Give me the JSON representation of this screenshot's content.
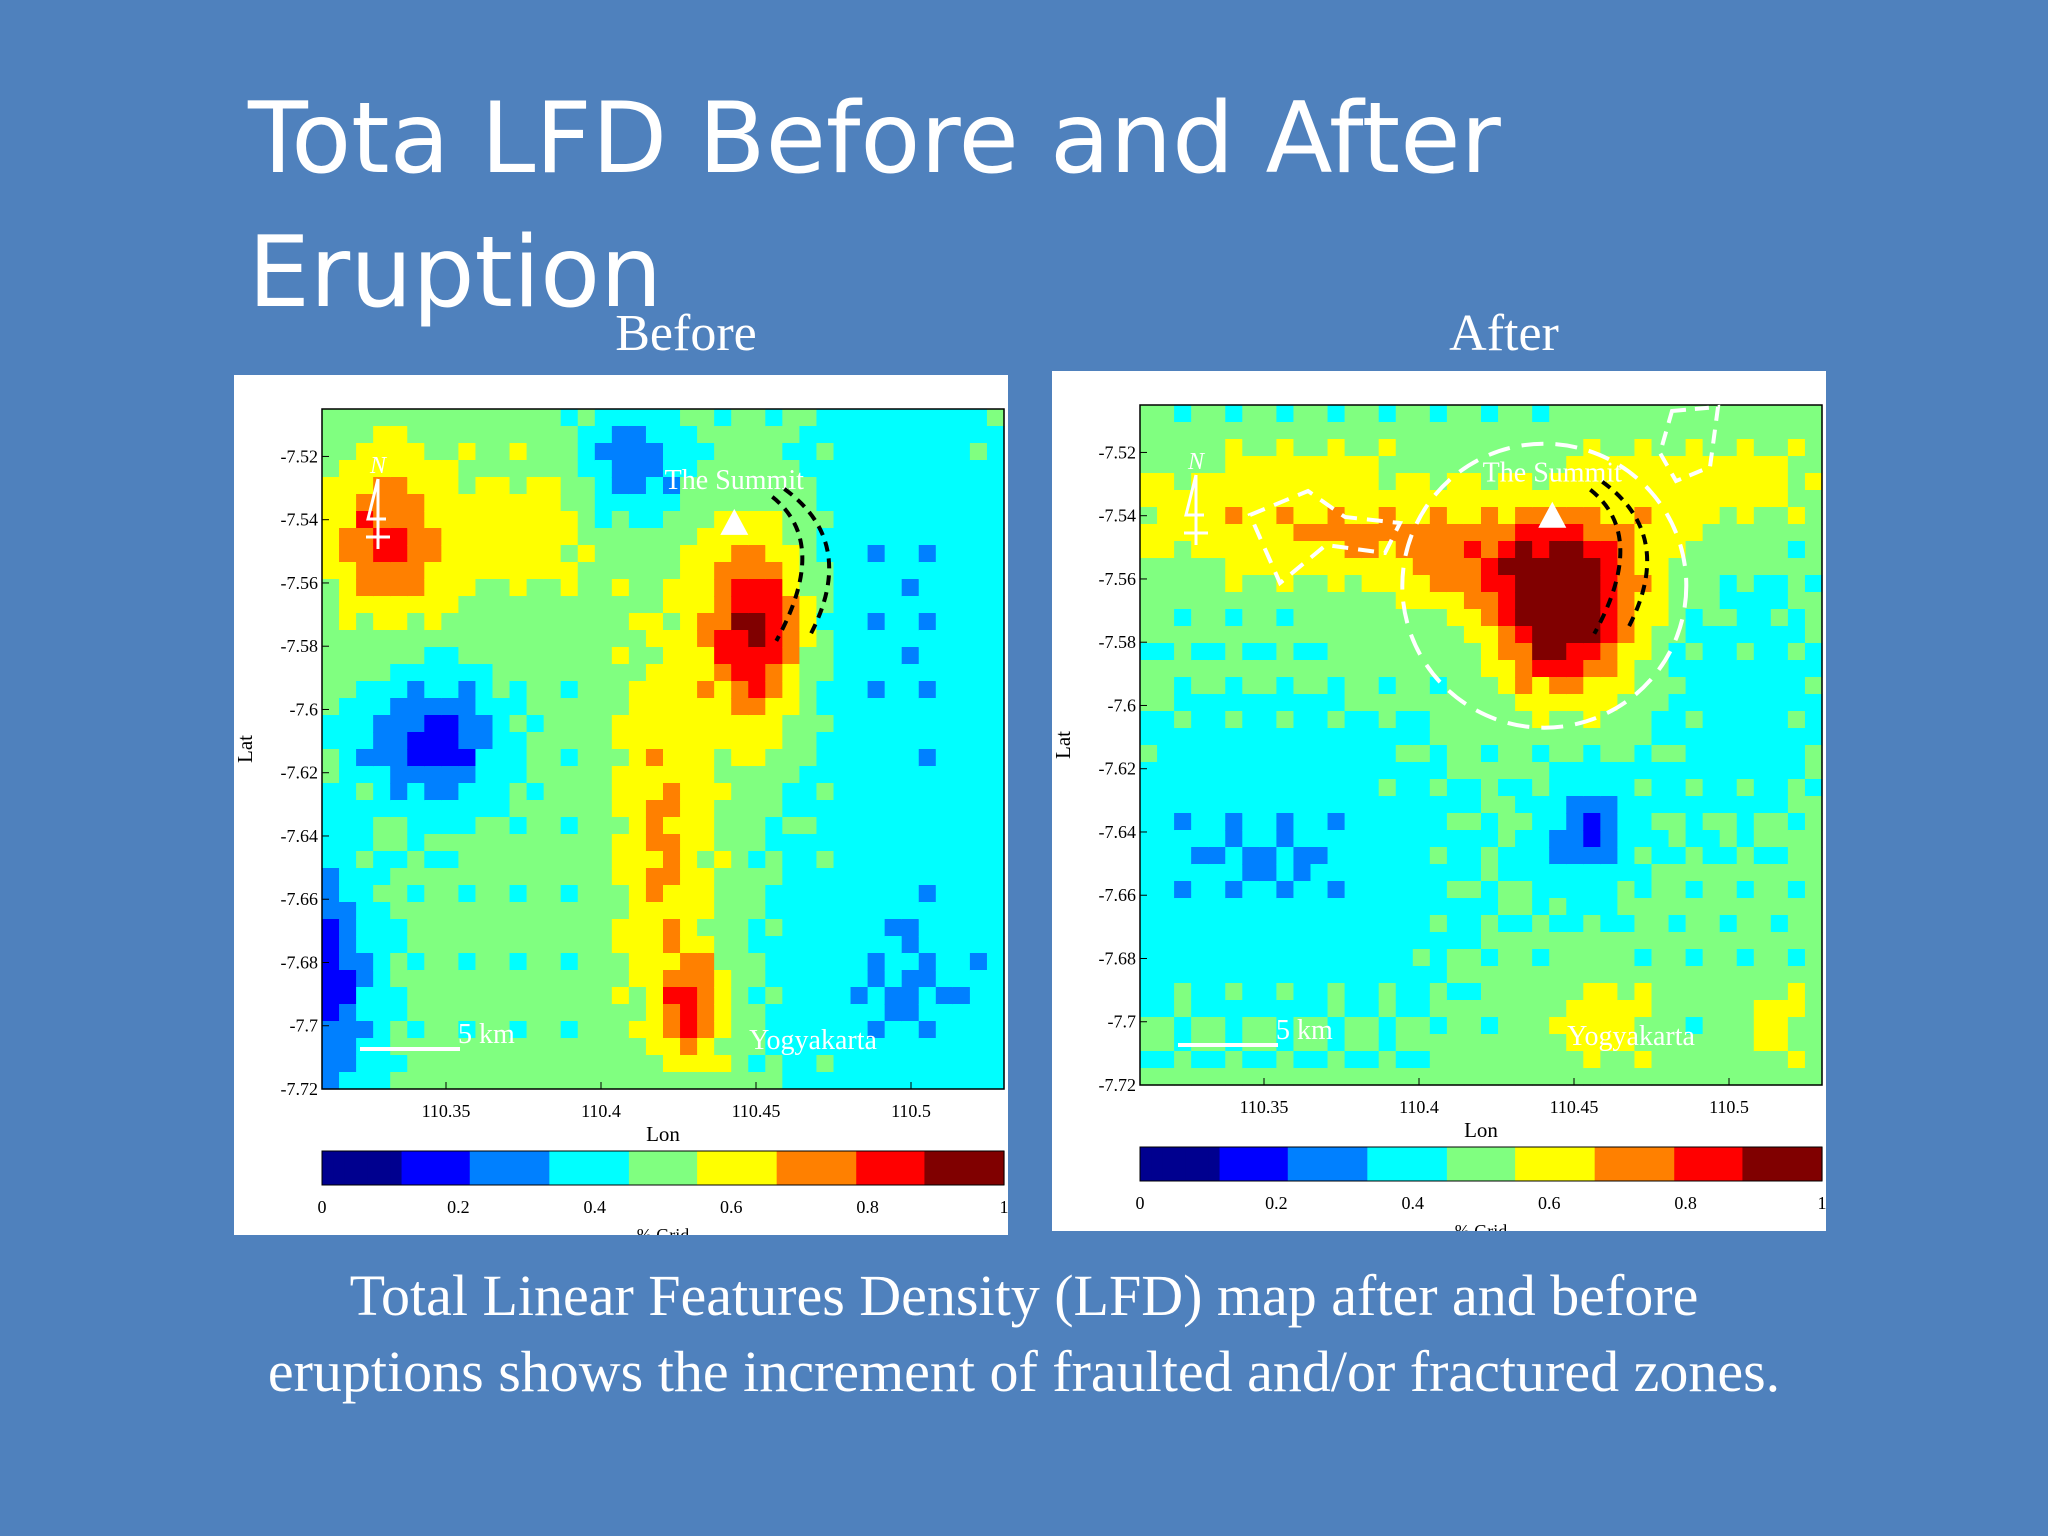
{
  "slide": {
    "title": "Tota LFD Before and After Eruption",
    "caption": "Total Linear Features Density (LFD) map after and before eruptions shows the increment of fraulted and/or fractured zones."
  },
  "colors": {
    "background": "#4f81bd",
    "colormap": [
      "#00008f",
      "#0000ff",
      "#0080ff",
      "#00ffff",
      "#80ff80",
      "#ffff00",
      "#ff8000",
      "#ff0000",
      "#800000"
    ]
  },
  "chart_data": [
    {
      "type": "heatmap",
      "subtitle": "Before",
      "xlabel": "Lon",
      "ylabel": "Lat",
      "x_ticks": [
        "110.35",
        "110.4",
        "110.45",
        "110.5"
      ],
      "x_tick_values": [
        110.35,
        110.4,
        110.45,
        110.5
      ],
      "y_ticks": [
        "-7.52",
        "-7.54",
        "-7.56",
        "-7.58",
        "-7.6",
        "-7.62",
        "-7.64",
        "-7.66",
        "-7.68",
        "-7.7",
        "-7.72"
      ],
      "y_tick_values": [
        -7.52,
        -7.54,
        -7.56,
        -7.58,
        -7.6,
        -7.62,
        -7.64,
        -7.66,
        -7.68,
        -7.7,
        -7.72
      ],
      "xlim": [
        110.31,
        110.53
      ],
      "ylim": [
        -7.72,
        -7.505
      ],
      "colorbar": {
        "label": "% Grid",
        "ticks": [
          "0",
          "0.2",
          "0.4",
          "0.6",
          "0.8",
          "1"
        ],
        "range": [
          0,
          1
        ]
      },
      "annotations": {
        "summit_label": "The Summit",
        "city_label": "Yogyakarta",
        "scale_label": "5 km",
        "north_label": "N"
      },
      "summit": {
        "lon": 110.443,
        "lat": -7.541
      },
      "blobs": [
        {
          "lon": 110.45,
          "lat": -7.575,
          "amp": 0.46,
          "sx": 0.012,
          "sy": 0.022
        },
        {
          "lon": 110.42,
          "lat": -7.64,
          "amp": 0.22,
          "sx": 0.012,
          "sy": 0.04
        },
        {
          "lon": 110.43,
          "lat": -7.695,
          "amp": 0.3,
          "sx": 0.008,
          "sy": 0.012
        },
        {
          "lon": 110.33,
          "lat": -7.545,
          "amp": 0.25,
          "sx": 0.012,
          "sy": 0.02
        },
        {
          "lon": 110.37,
          "lat": -7.545,
          "amp": 0.14,
          "sx": 0.035,
          "sy": 0.02
        },
        {
          "lon": 110.345,
          "lat": -7.61,
          "amp": -0.32,
          "sx": 0.014,
          "sy": 0.014
        },
        {
          "lon": 110.312,
          "lat": -7.685,
          "amp": -0.32,
          "sx": 0.01,
          "sy": 0.025
        },
        {
          "lon": 110.41,
          "lat": -7.525,
          "amp": -0.25,
          "sx": 0.012,
          "sy": 0.014
        },
        {
          "lon": 110.5,
          "lat": -7.58,
          "amp": -0.12,
          "sx": 0.03,
          "sy": 0.06
        },
        {
          "lon": 110.5,
          "lat": -7.69,
          "amp": -0.12,
          "sx": 0.03,
          "sy": 0.025
        }
      ]
    },
    {
      "type": "heatmap",
      "subtitle": "After",
      "xlabel": "Lon",
      "ylabel": "Lat",
      "x_ticks": [
        "110.35",
        "110.4",
        "110.45",
        "110.5"
      ],
      "x_tick_values": [
        110.35,
        110.4,
        110.45,
        110.5
      ],
      "y_ticks": [
        "-7.52",
        "-7.54",
        "-7.56",
        "-7.58",
        "-7.6",
        "-7.62",
        "-7.64",
        "-7.66",
        "-7.68",
        "-7.7",
        "-7.72"
      ],
      "y_tick_values": [
        -7.52,
        -7.54,
        -7.56,
        -7.58,
        -7.6,
        -7.62,
        -7.64,
        -7.66,
        -7.68,
        -7.7,
        -7.72
      ],
      "xlim": [
        110.31,
        110.53
      ],
      "ylim": [
        -7.72,
        -7.505
      ],
      "colorbar": {
        "label": "% Grid",
        "ticks": [
          "0",
          "0.2",
          "0.4",
          "0.6",
          "0.8",
          "1"
        ],
        "range": [
          0,
          1
        ]
      },
      "annotations": {
        "summit_label": "The Summit",
        "city_label": "Yogyakarta",
        "scale_label": "5 km",
        "north_label": "N"
      },
      "summit": {
        "lon": 110.443,
        "lat": -7.54
      },
      "blobs": [
        {
          "lon": 110.447,
          "lat": -7.572,
          "amp": 0.52,
          "sx": 0.016,
          "sy": 0.018
        },
        {
          "lon": 110.43,
          "lat": -7.555,
          "amp": 0.22,
          "sx": 0.03,
          "sy": 0.012
        },
        {
          "lon": 110.36,
          "lat": -7.54,
          "amp": 0.2,
          "sx": 0.04,
          "sy": 0.014
        },
        {
          "lon": 110.49,
          "lat": -7.53,
          "amp": 0.16,
          "sx": 0.03,
          "sy": 0.012
        },
        {
          "lon": 110.35,
          "lat": -7.65,
          "amp": -0.14,
          "sx": 0.04,
          "sy": 0.03
        },
        {
          "lon": 110.455,
          "lat": -7.64,
          "amp": -0.24,
          "sx": 0.01,
          "sy": 0.012
        },
        {
          "lon": 110.5,
          "lat": -7.6,
          "amp": -0.08,
          "sx": 0.02,
          "sy": 0.03
        },
        {
          "lon": 110.46,
          "lat": -7.7,
          "amp": 0.18,
          "sx": 0.012,
          "sy": 0.01
        },
        {
          "lon": 110.515,
          "lat": -7.7,
          "amp": 0.15,
          "sx": 0.008,
          "sy": 0.01
        }
      ]
    }
  ]
}
